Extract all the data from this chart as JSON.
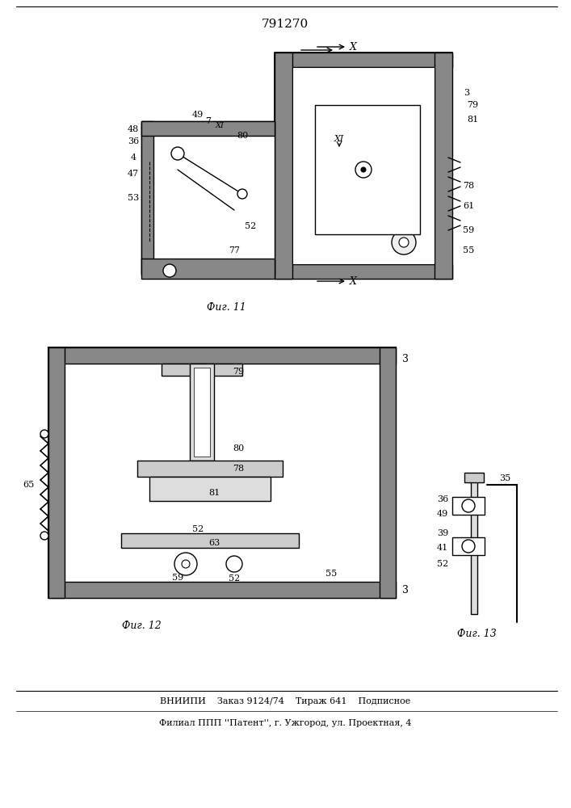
{
  "title": "791270",
  "fig11_label": "Фиг. 11",
  "fig12_label": "Фиг. 12",
  "fig13_label": "Фиг. 13",
  "bottom_text1": "ВНИИПИ    Заказ 9124/74    Тираж 641    Подписное",
  "bottom_text2": "Филиал ППП ''Патент'', г. Ужгород, ул. Проектная, 4",
  "bg_color": "#ffffff",
  "line_color": "#000000",
  "hatching_color": "#555555"
}
